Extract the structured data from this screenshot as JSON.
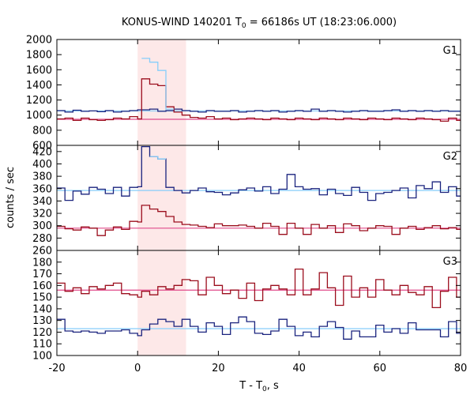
{
  "chart_data": {
    "type": "line",
    "title": {
      "instrument": "KONUS-WIND 140201 T",
      "sub": "0",
      "rest": " = 66186s UT (18:23:06.000)"
    },
    "xlabel": {
      "main": "T - T",
      "sub": "0",
      "rest": ", s"
    },
    "ylabel": "counts / sec",
    "xlim": [
      -20,
      80
    ],
    "xticks": [
      -20,
      0,
      20,
      40,
      60,
      80
    ],
    "highlight": {
      "x0": 0,
      "x1": 12,
      "color": "#fde8e8"
    },
    "bin_edges": [
      -20,
      -18,
      -16,
      -14,
      -12,
      -10,
      -8,
      -6,
      -4,
      -2,
      0,
      1,
      3,
      5,
      7,
      9,
      11,
      13,
      15,
      17,
      19,
      21,
      23,
      25,
      27,
      29,
      31,
      33,
      35,
      37,
      39,
      41,
      43,
      45,
      47,
      49,
      51,
      53,
      55,
      57,
      59,
      61,
      63,
      65,
      67,
      69,
      71,
      73,
      75,
      77,
      79,
      81
    ],
    "panels": [
      {
        "label": "G1",
        "ylim": [
          600,
          2000
        ],
        "yticks": [
          600,
          800,
          1000,
          1200,
          1400,
          1600,
          1800,
          2000
        ],
        "background": [
          {
            "name": "blue-bg",
            "value": 1055,
            "color": "#87cefa"
          },
          {
            "name": "red-bg",
            "value": 945,
            "color": "#e04a8a"
          }
        ],
        "series": [
          {
            "color": "#1a237e",
            "values": [
              1060,
              1040,
              1065,
              1050,
              1055,
              1045,
              1060,
              1040,
              1050,
              1060,
              1070,
              1070,
              1080,
              1050,
              1060,
              1080,
              1060,
              1050,
              1040,
              1060,
              1050,
              1050,
              1060,
              1040,
              1050,
              1060,
              1050,
              1060,
              1040,
              1050,
              1060,
              1050,
              1080,
              1050,
              1060,
              1050,
              1040,
              1050,
              1060,
              1050,
              1050,
              1060,
              1070,
              1050,
              1060,
              1050,
              1060,
              1050,
              1060,
              1050,
              1050
            ]
          },
          {
            "color": "#9b0e1d",
            "values": [
              950,
              960,
              930,
              960,
              940,
              930,
              940,
              960,
              950,
              980,
              950,
              1480,
              1410,
              1390,
              1110,
              1040,
              1000,
              970,
              960,
              980,
              950,
              960,
              940,
              950,
              960,
              950,
              940,
              960,
              950,
              940,
              960,
              950,
              940,
              960,
              950,
              940,
              960,
              950,
              940,
              960,
              950,
              940,
              960,
              950,
              940,
              960,
              950,
              940,
              920,
              960,
              930
            ]
          },
          {
            "color": "#87cefa",
            "values": [
              null,
              null,
              null,
              null,
              null,
              null,
              null,
              null,
              null,
              null,
              null,
              1750,
              1700,
              1590,
              1080,
              null,
              null,
              null,
              null,
              null,
              null,
              null,
              null,
              null,
              null,
              null,
              null,
              null,
              null,
              null,
              null,
              null,
              null,
              null,
              null,
              null,
              null,
              null,
              null,
              null,
              null,
              null,
              null,
              null,
              null,
              null,
              null,
              null,
              null,
              null,
              null
            ]
          }
        ]
      },
      {
        "label": "G2",
        "ylim": [
          260,
          430
        ],
        "yticks": [
          260,
          280,
          300,
          320,
          340,
          360,
          380,
          400,
          420
        ],
        "background": [
          {
            "name": "blue-bg",
            "value": 357,
            "color": "#87cefa"
          },
          {
            "name": "red-bg",
            "value": 296,
            "color": "#e04a8a"
          }
        ],
        "series": [
          {
            "color": "#1a237e",
            "values": [
              361,
              341,
              356,
              351,
              362,
              359,
              352,
              362,
              348,
              362,
              363,
              428,
              412,
              408,
              362,
              357,
              353,
              357,
              361,
              355,
              354,
              350,
              353,
              358,
              361,
              356,
              363,
              352,
              359,
              383,
              363,
              359,
              360,
              350,
              359,
              352,
              349,
              362,
              354,
              341,
              352,
              354,
              357,
              361,
              345,
              365,
              360,
              371,
              354,
              363,
              348
            ]
          },
          {
            "color": "#9b0e1d",
            "values": [
              299,
              295,
              293,
              298,
              296,
              284,
              293,
              298,
              294,
              307,
              306,
              333,
              327,
              323,
              315,
              306,
              302,
              301,
              299,
              297,
              303,
              300,
              300,
              301,
              299,
              296,
              304,
              299,
              286,
              304,
              296,
              286,
              302,
              296,
              300,
              289,
              303,
              300,
              292,
              296,
              300,
              299,
              286,
              296,
              299,
              294,
              297,
              300,
              295,
              297,
              294
            ]
          },
          {
            "color": "#87cefa",
            "values": [
              null,
              null,
              null,
              null,
              null,
              null,
              null,
              null,
              null,
              null,
              null,
              null,
              412,
              408,
              null,
              null,
              null,
              null,
              null,
              null,
              null,
              null,
              null,
              null,
              null,
              null,
              null,
              null,
              null,
              null,
              null,
              null,
              null,
              null,
              null,
              null,
              null,
              null,
              null,
              null,
              null,
              null,
              null,
              null,
              null,
              null,
              null,
              null,
              null,
              null,
              null
            ]
          }
        ]
      },
      {
        "label": "G3",
        "ylim": [
          100,
          190
        ],
        "yticks": [
          100,
          110,
          120,
          130,
          140,
          150,
          160,
          170,
          180
        ],
        "background": [
          {
            "name": "red-bg",
            "value": 156,
            "color": "#e04a8a"
          },
          {
            "name": "blue-bg",
            "value": 123,
            "color": "#87cefa"
          }
        ],
        "series": [
          {
            "color": "#9b0e1d",
            "values": [
              162,
              155,
              158,
              153,
              159,
              157,
              160,
              162,
              153,
              152,
              150,
              155,
              152,
              159,
              157,
              160,
              165,
              164,
              152,
              167,
              160,
              153,
              156,
              149,
              162,
              147,
              157,
              160,
              157,
              152,
              174,
              152,
              157,
              171,
              158,
              143,
              168,
              150,
              158,
              150,
              165,
              156,
              152,
              160,
              154,
              152,
              159,
              141,
              155,
              167,
              150
            ]
          },
          {
            "color": "#1a237e",
            "values": [
              131,
              121,
              120,
              121,
              120,
              119,
              121,
              121,
              122,
              119,
              117,
              122,
              127,
              131,
              129,
              125,
              131,
              125,
              120,
              128,
              125,
              118,
              128,
              133,
              129,
              119,
              118,
              121,
              131,
              125,
              117,
              120,
              116,
              125,
              129,
              124,
              114,
              121,
              116,
              116,
              126,
              120,
              123,
              119,
              128,
              122,
              122,
              122,
              116,
              129,
              119
            ]
          }
        ]
      }
    ]
  }
}
